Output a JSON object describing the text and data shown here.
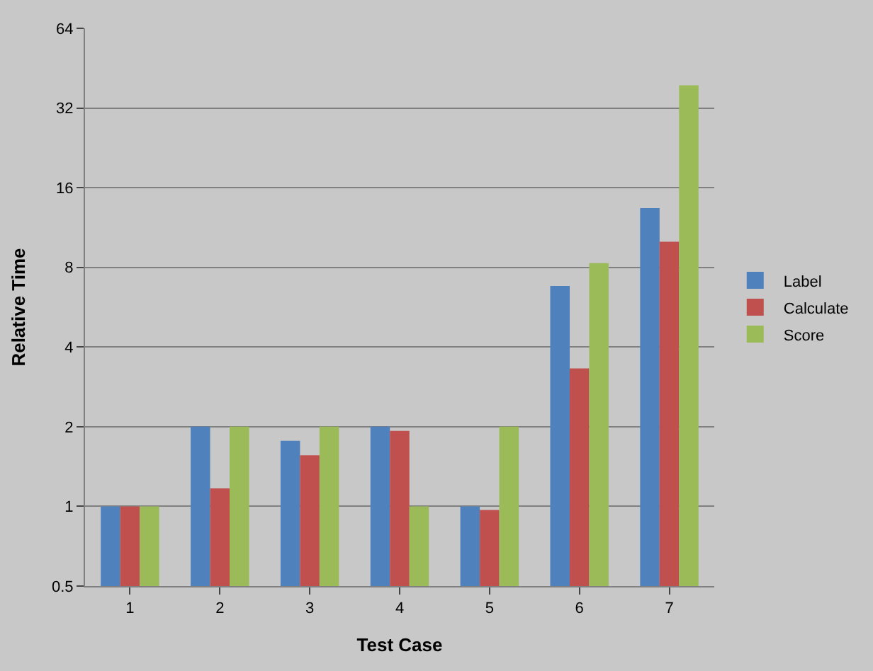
{
  "chart_data": {
    "type": "bar",
    "xlabel": "Test Case",
    "ylabel": "Relative Time",
    "categories": [
      "1",
      "2",
      "3",
      "4",
      "5",
      "6",
      "7"
    ],
    "series": [
      {
        "name": "Label",
        "color": "#4f81bd",
        "values": [
          1,
          2,
          1.77,
          2,
          1,
          6.8,
          13.4
        ]
      },
      {
        "name": "Calculate",
        "color": "#c0504d",
        "values": [
          1,
          1.17,
          1.56,
          1.93,
          0.97,
          3.32,
          10
        ]
      },
      {
        "name": "Score",
        "color": "#9bbb59",
        "values": [
          1,
          2,
          2,
          1,
          2,
          8.3,
          39
        ]
      }
    ],
    "log": "y",
    "ylim": [
      0.5,
      64
    ],
    "yticks": [
      0.5,
      1,
      2,
      4,
      8,
      16,
      32,
      64
    ],
    "grid": "y",
    "legend": "right"
  }
}
